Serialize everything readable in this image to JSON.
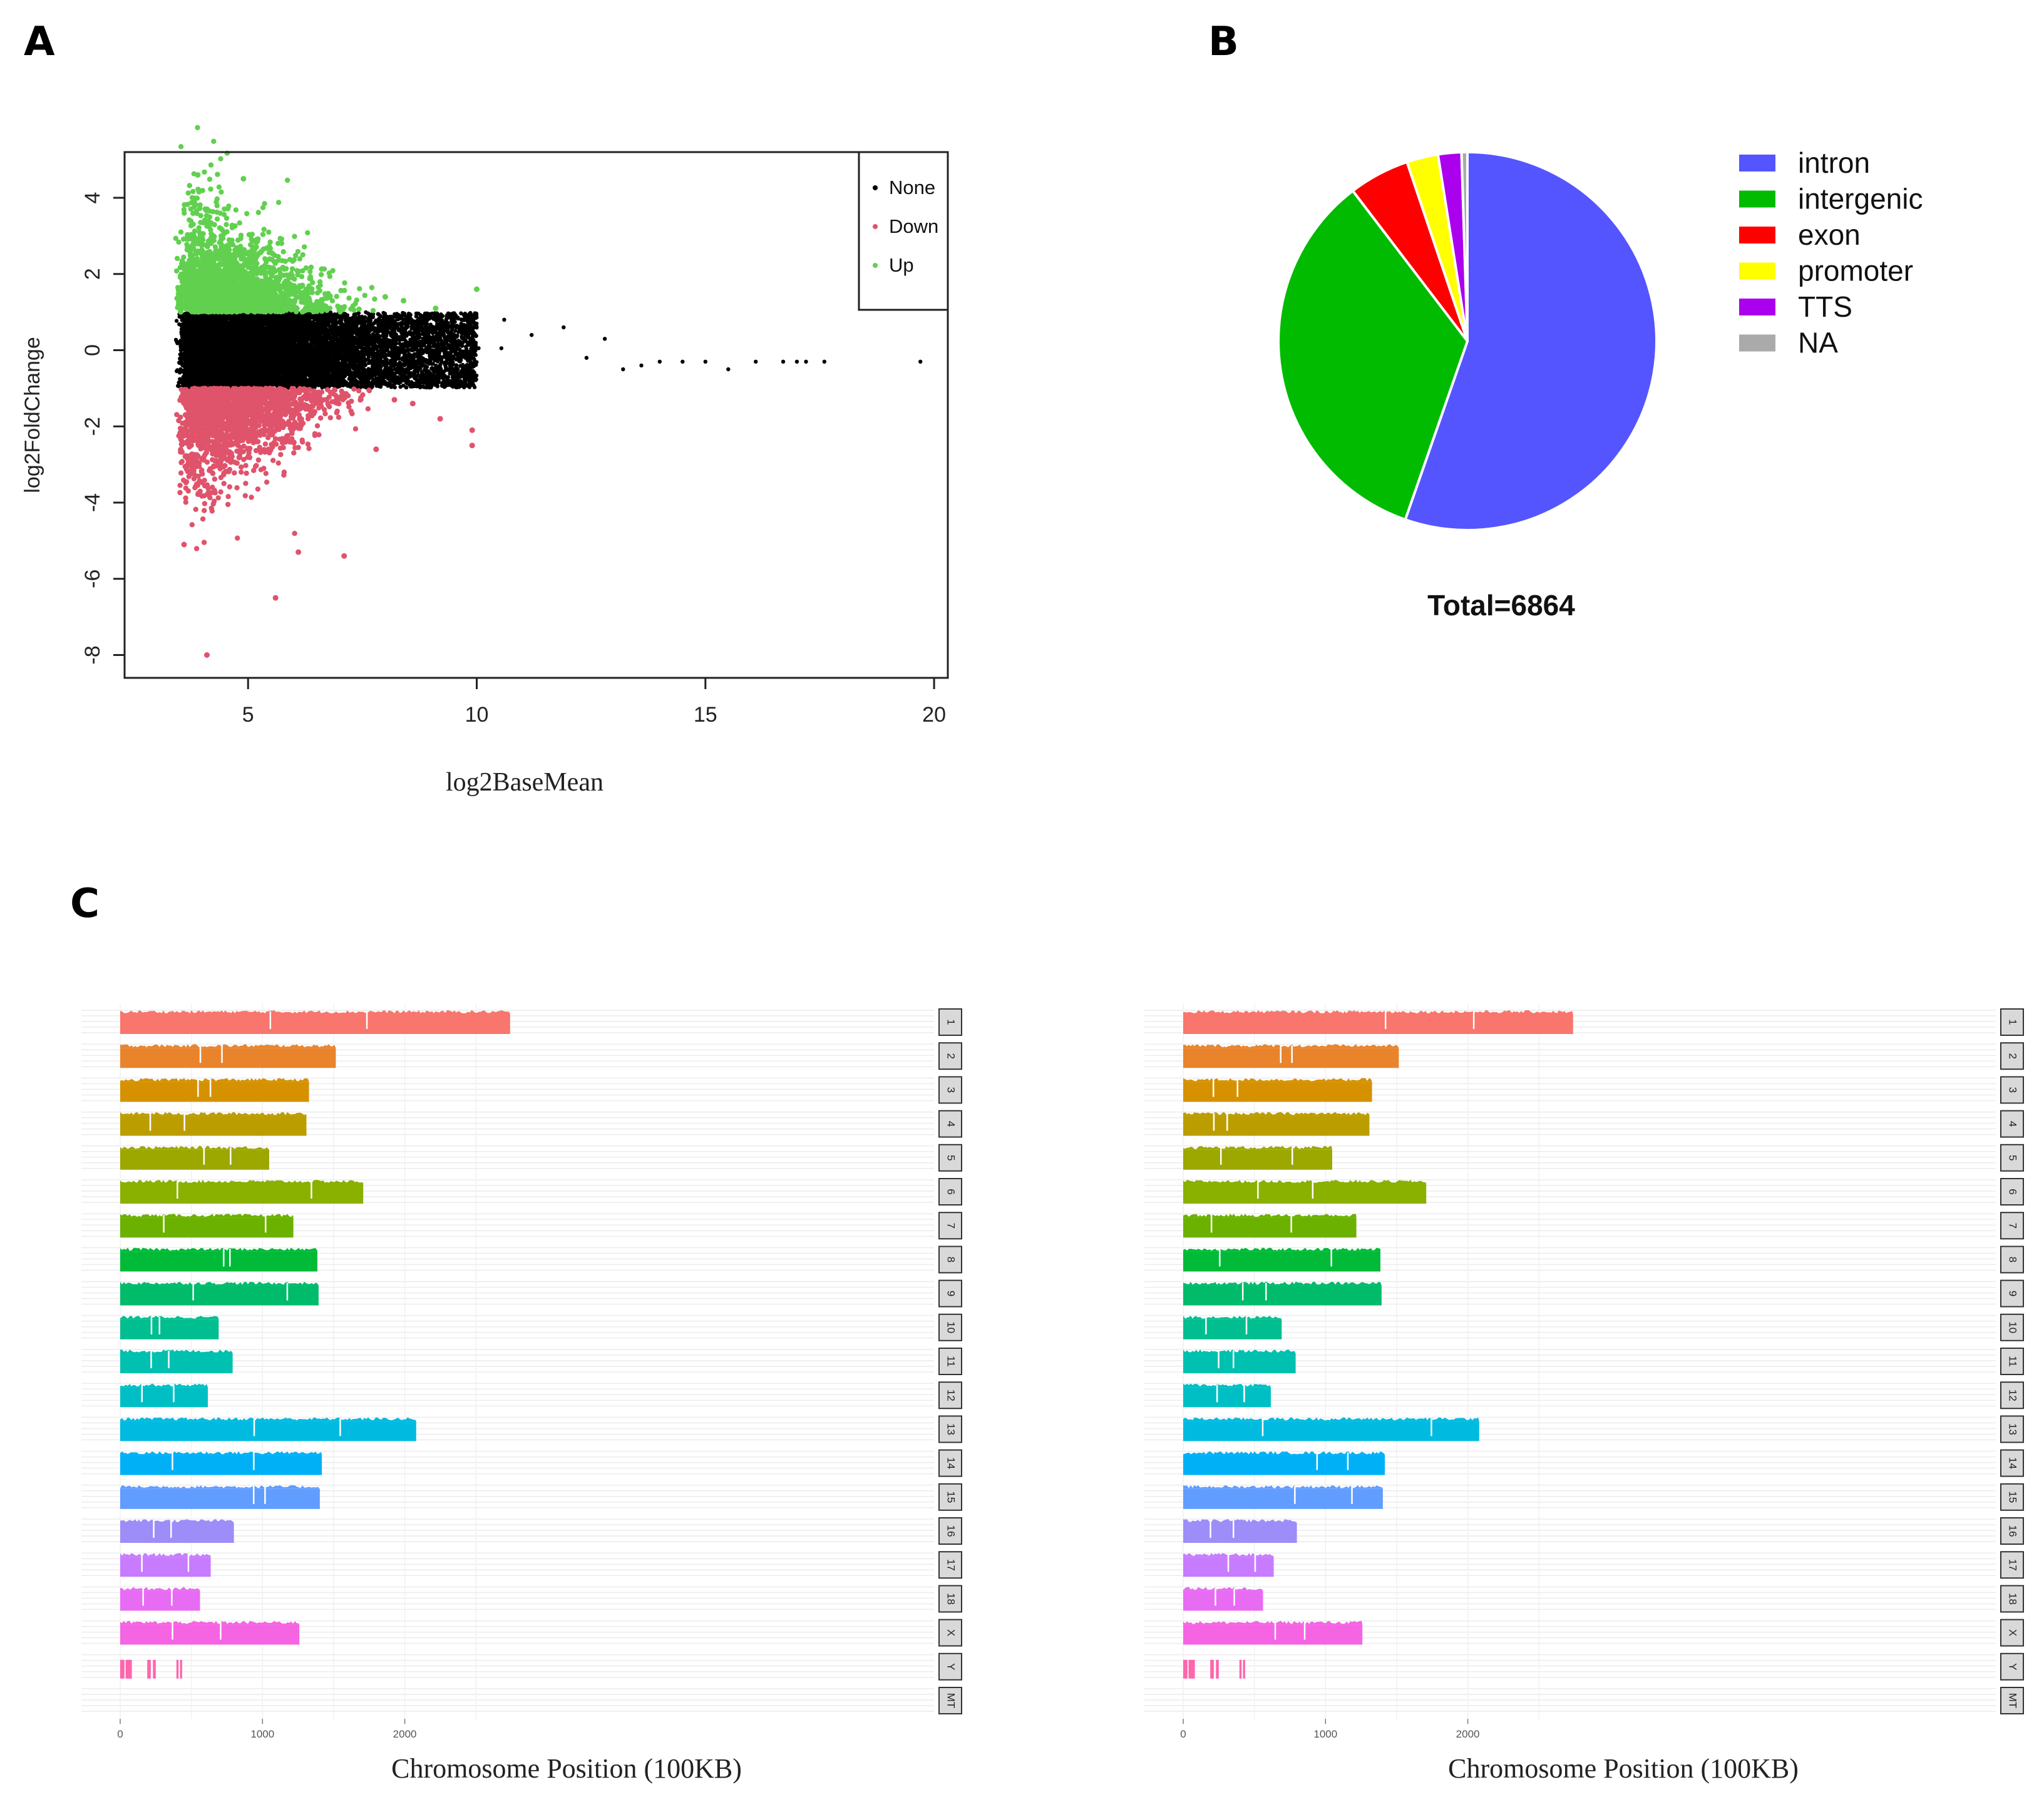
{
  "panels": {
    "a": "A",
    "b": "B",
    "c": "C"
  },
  "chart_data": [
    {
      "type": "scatter",
      "panel": "A",
      "xlabel": "log2BaseMean",
      "ylabel": "log2FoldChange",
      "xlim": [
        2.3,
        20.3
      ],
      "ylim": [
        -8.6,
        5.2
      ],
      "xticks": [
        5,
        10,
        15,
        20
      ],
      "yticks": [
        4,
        2,
        0,
        -2,
        -4,
        -6,
        -8
      ],
      "legend_position": "top-right",
      "series": [
        {
          "name": "None",
          "color": "#000000"
        },
        {
          "name": "Down",
          "color": "#df536b"
        },
        {
          "name": "Up",
          "color": "#61d04f"
        }
      ],
      "outliers": {
        "None": [
          [
            12.4,
            -0.2
          ],
          [
            12.8,
            0.3
          ],
          [
            13.2,
            -0.5
          ],
          [
            13.6,
            -0.4
          ],
          [
            14.0,
            -0.3
          ],
          [
            14.5,
            -0.3
          ],
          [
            15.0,
            -0.3
          ],
          [
            15.5,
            -0.5
          ],
          [
            16.1,
            -0.3
          ],
          [
            16.7,
            -0.3
          ],
          [
            17.0,
            -0.3
          ],
          [
            17.2,
            -0.3
          ],
          [
            17.6,
            -0.3
          ],
          [
            19.7,
            -0.3
          ],
          [
            11.2,
            0.4
          ],
          [
            11.9,
            0.6
          ],
          [
            10.6,
            0.8
          ]
        ],
        "Down": [
          [
            4.1,
            -8.0
          ],
          [
            5.6,
            -6.5
          ],
          [
            3.6,
            -5.1
          ],
          [
            6.1,
            -5.3
          ],
          [
            7.1,
            -5.4
          ],
          [
            9.9,
            -2.1
          ],
          [
            9.9,
            -2.5
          ],
          [
            9.2,
            -1.8
          ],
          [
            8.6,
            -1.4
          ],
          [
            8.2,
            -1.3
          ],
          [
            7.8,
            -2.6
          ]
        ],
        "Up": [
          [
            3.9,
            4.6
          ],
          [
            4.9,
            4.5
          ],
          [
            3.5,
            1.6
          ],
          [
            10.0,
            1.6
          ],
          [
            8.4,
            1.3
          ],
          [
            9.1,
            1.1
          ],
          [
            8.0,
            1.4
          ]
        ]
      }
    },
    {
      "type": "pie",
      "panel": "B",
      "total_label": "Total=6864",
      "slices": [
        {
          "label": "intron",
          "value": 55.5,
          "color": "#5555ff"
        },
        {
          "label": "intergenic",
          "value": 34.4,
          "color": "#00bb00"
        },
        {
          "label": "exon",
          "value": 5.2,
          "color": "#ff0000"
        },
        {
          "label": "promoter",
          "value": 2.7,
          "color": "#ffff00"
        },
        {
          "label": "TTS",
          "value": 2.0,
          "color": "#aa00ee"
        },
        {
          "label": "NA",
          "value": 0.5,
          "color": "#aaaaaa"
        }
      ]
    },
    {
      "type": "bar",
      "panel": "C",
      "xlabel": "Chromosome Position (100KB)",
      "xlim": [
        0,
        2900
      ],
      "xticks": [
        0,
        1000,
        2000
      ],
      "chromosomes": [
        {
          "name": "1",
          "length": 2740,
          "color": "#f8766d"
        },
        {
          "name": "2",
          "length": 1515,
          "color": "#e9842c"
        },
        {
          "name": "3",
          "length": 1327,
          "color": "#d69100"
        },
        {
          "name": "4",
          "length": 1309,
          "color": "#bc9d00"
        },
        {
          "name": "5",
          "length": 1047,
          "color": "#9ca700"
        },
        {
          "name": "6",
          "length": 1708,
          "color": "#8ab000"
        },
        {
          "name": "7",
          "length": 1217,
          "color": "#6bb100"
        },
        {
          "name": "8",
          "length": 1386,
          "color": "#00ba38"
        },
        {
          "name": "9",
          "length": 1394,
          "color": "#00bb6a"
        },
        {
          "name": "10",
          "length": 692,
          "color": "#00be8f"
        },
        {
          "name": "11",
          "length": 790,
          "color": "#00c0b0"
        },
        {
          "name": "12",
          "length": 616,
          "color": "#00bfc4"
        },
        {
          "name": "13",
          "length": 2080,
          "color": "#00bae0"
        },
        {
          "name": "14",
          "length": 1417,
          "color": "#00b0f6"
        },
        {
          "name": "15",
          "length": 1403,
          "color": "#619cff"
        },
        {
          "name": "16",
          "length": 799,
          "color": "#9c8df9"
        },
        {
          "name": "17",
          "length": 636,
          "color": "#c77cff"
        },
        {
          "name": "18",
          "length": 561,
          "color": "#e76bf3"
        },
        {
          "name": "X",
          "length": 1259,
          "color": "#f564e3"
        },
        {
          "name": "Y",
          "length": 0,
          "color": "#ff65ac",
          "segments": [
            [
              0,
              30
            ],
            [
              38,
              82
            ],
            [
              190,
              215
            ],
            [
              230,
              250
            ],
            [
              395,
              410
            ],
            [
              420,
              435
            ]
          ]
        },
        {
          "name": "MT",
          "length": 0,
          "color": "#ff6c91"
        }
      ]
    }
  ]
}
